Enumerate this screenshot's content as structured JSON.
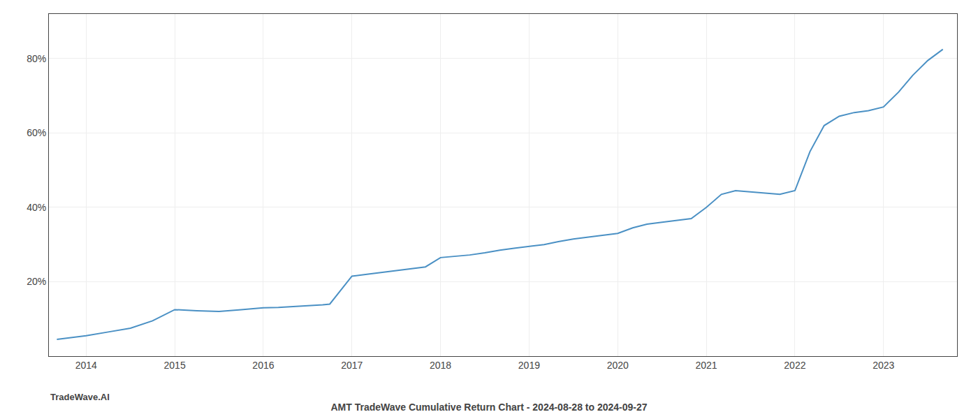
{
  "chart_data": {
    "type": "line",
    "title": "AMT TradeWave Cumulative Return Chart - 2024-08-28 to 2024-09-27",
    "annotations": [
      "TradeWave.AI"
    ],
    "x": [
      2013.67,
      2014.0,
      2014.25,
      2014.5,
      2014.75,
      2015.0,
      2015.25,
      2015.5,
      2015.75,
      2016.0,
      2016.17,
      2016.33,
      2016.5,
      2016.67,
      2016.75,
      2017.0,
      2017.17,
      2017.33,
      2017.5,
      2017.67,
      2017.83,
      2018.0,
      2018.17,
      2018.33,
      2018.5,
      2018.67,
      2018.83,
      2019.0,
      2019.17,
      2019.33,
      2019.5,
      2019.67,
      2019.83,
      2020.0,
      2020.17,
      2020.33,
      2020.5,
      2020.67,
      2020.83,
      2021.0,
      2021.1,
      2021.17,
      2021.33,
      2021.5,
      2021.67,
      2021.83,
      2022.0,
      2022.17,
      2022.33,
      2022.5,
      2022.67,
      2022.83,
      2023.0,
      2023.17,
      2023.33,
      2023.5,
      2023.67
    ],
    "values": [
      4.5,
      5.5,
      6.5,
      7.5,
      9.5,
      12.5,
      12.2,
      12.0,
      12.5,
      13.0,
      13.1,
      13.3,
      13.5,
      13.8,
      14.0,
      21.5,
      22.0,
      22.5,
      23.0,
      23.5,
      24.0,
      26.5,
      26.8,
      27.2,
      27.8,
      28.5,
      29.0,
      29.5,
      30.0,
      30.8,
      31.5,
      32.0,
      32.5,
      33.0,
      34.5,
      35.5,
      36.0,
      36.5,
      37.0,
      40.0,
      42.0,
      43.5,
      44.5,
      44.2,
      43.8,
      43.5,
      44.5,
      55.0,
      62.0,
      64.5,
      65.5,
      66.0,
      67.0,
      71.0,
      75.5,
      79.5,
      82.5
    ],
    "color": "#4a90c4",
    "xlim": [
      2013.58,
      2023.83
    ],
    "xticks": [
      2014,
      2015,
      2016,
      2017,
      2018,
      2019,
      2020,
      2021,
      2022,
      2023
    ],
    "ylim": [
      0,
      92
    ],
    "yticks": [
      {
        "value": 20,
        "label": "20%"
      },
      {
        "value": 40,
        "label": "40%"
      },
      {
        "value": 60,
        "label": "60%"
      },
      {
        "value": 80,
        "label": "80%"
      }
    ],
    "grid": true
  }
}
